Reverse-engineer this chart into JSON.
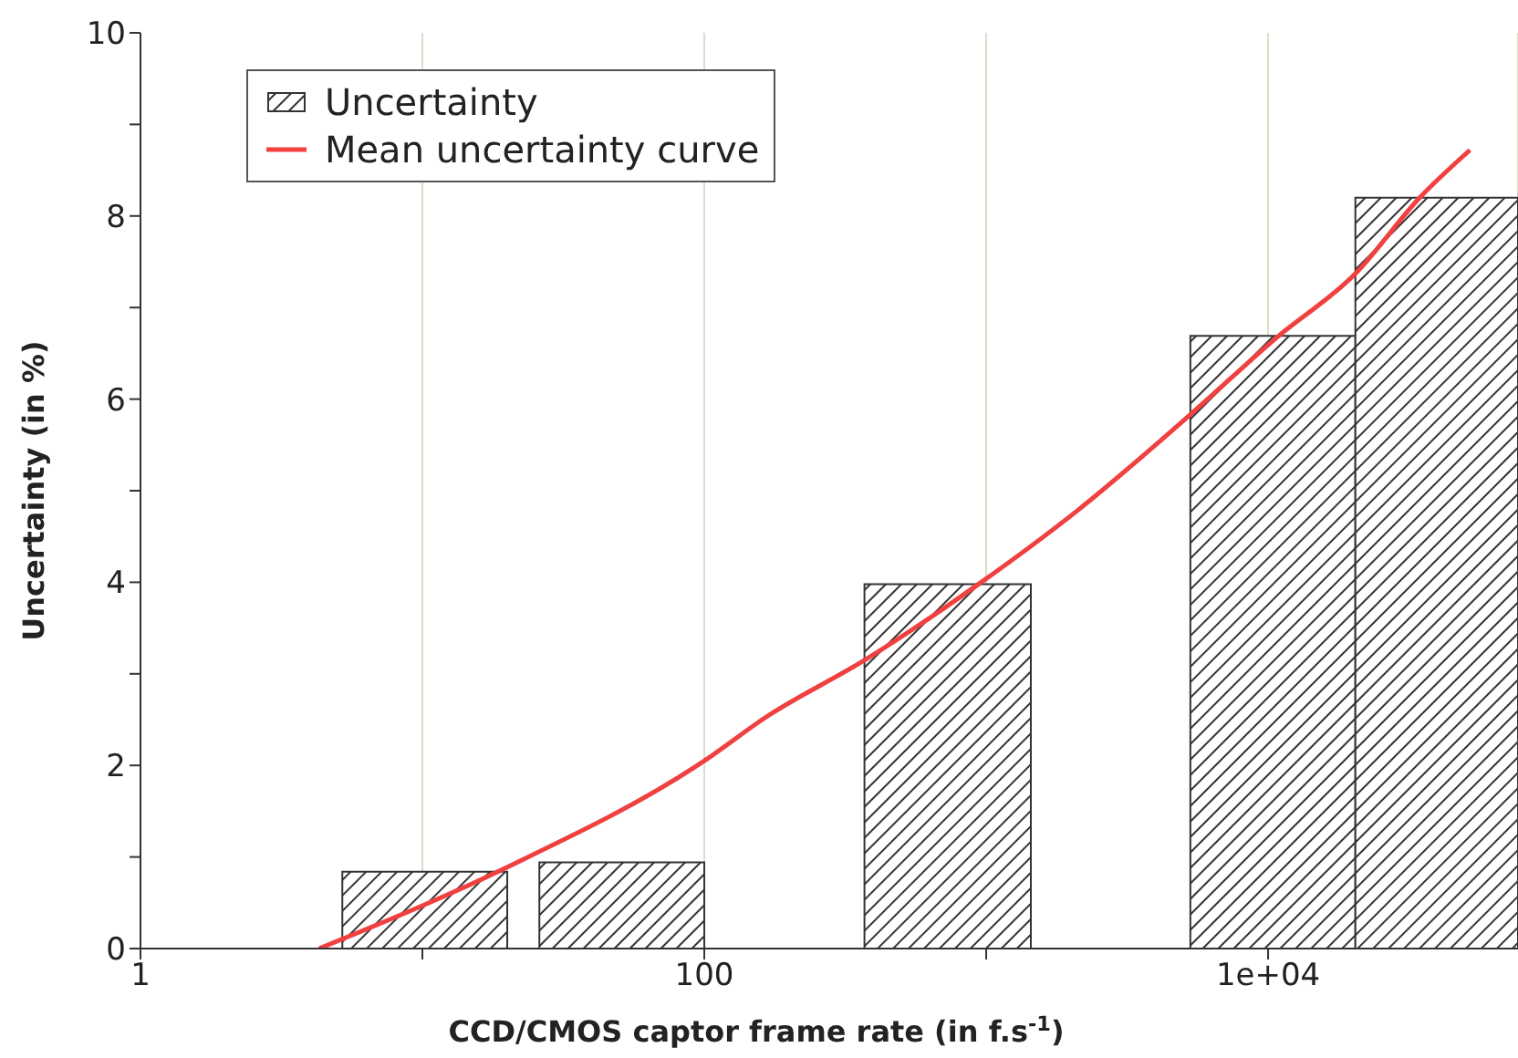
{
  "chart_data": {
    "type": "histogram",
    "xlabel": "CCD/CMOS captor frame rate (in f.s$^{-1}$)",
    "ylabel": "Uncertainty (in %)",
    "log": "x",
    "xlim": [
      1,
      77000
    ],
    "xticks": [
      1,
      {
        "value": 10,
        "label": null
      },
      100,
      {
        "value": 1000,
        "label": null
      },
      {
        "value": 10000,
        "label": "1e+04"
      }
    ],
    "ylim": [
      0,
      10
    ],
    "yticks": [
      0,
      {
        "value": 1,
        "label": null
      },
      2,
      {
        "value": 3,
        "label": null
      },
      4,
      {
        "value": 5,
        "label": null
      },
      6,
      {
        "value": 7,
        "label": null
      },
      8,
      {
        "value": 9,
        "label": null
      },
      10
    ],
    "grid": "x",
    "legend": "top left",
    "series": [
      {
        "name": "Uncertainty",
        "color": "#333333",
        "bins": [
          5.2,
          20,
          26,
          100,
          370,
          1440,
          5300,
          20400,
          77000
        ],
        "values": [
          0.84,
          null,
          0.94,
          null,
          3.98,
          null,
          6.69,
          8.2
        ]
      },
      {
        "name": "Mean uncertainty curve",
        "type": "line",
        "color": "#f04040",
        "x": [
          4.3,
          19.7,
          100,
          166,
          371,
          940,
          2100,
          5340,
          10700,
          20400,
          34500,
          52000
        ],
        "values": [
          0,
          0.88,
          2.05,
          2.53,
          3.15,
          3.98,
          4.78,
          5.84,
          6.67,
          7.37,
          8.2,
          8.72
        ]
      }
    ]
  }
}
